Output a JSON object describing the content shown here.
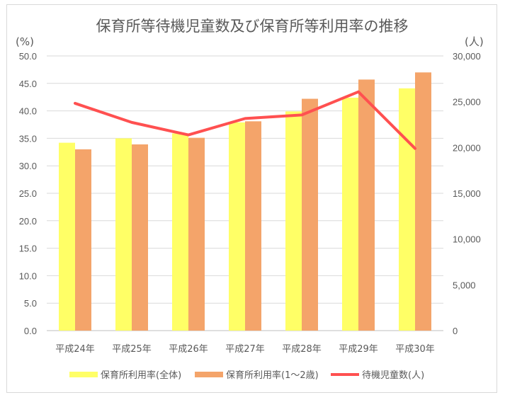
{
  "chart_data": {
    "type": "bar",
    "title": "保育所等待機児童数及び保育所等利用率の推移",
    "categories": [
      "平成24年",
      "平成25年",
      "平成26年",
      "平成27年",
      "平成28年",
      "平成29年",
      "平成30年"
    ],
    "y_left": {
      "unit": "(%)",
      "min": 0,
      "max": 50,
      "step": 5,
      "ticks": [
        "0.0",
        "5.0",
        "10.0",
        "15.0",
        "20.0",
        "25.0",
        "30.0",
        "35.0",
        "40.0",
        "45.0",
        "50.0"
      ]
    },
    "y_right": {
      "unit": "(人)",
      "min": 0,
      "max": 30000,
      "step": 5000,
      "ticks": [
        "0",
        "5,000",
        "10,000",
        "15,000",
        "20,000",
        "25,000",
        "30,000"
      ]
    },
    "series": [
      {
        "name": "保育所利用率(全体)",
        "type": "bar",
        "axis": "left",
        "color": "#ffff66",
        "values": [
          34.2,
          35.0,
          35.9,
          37.9,
          39.9,
          42.4,
          44.1
        ]
      },
      {
        "name": "保育所利用率(1～2歳)",
        "type": "bar",
        "axis": "left",
        "color": "#f4a46a",
        "values": [
          33.0,
          33.9,
          35.1,
          38.1,
          42.2,
          45.7,
          47.0
        ]
      },
      {
        "name": "待機児童数(人)",
        "type": "line",
        "axis": "right",
        "color": "#ff5050",
        "values": [
          24825,
          22741,
          21371,
          23167,
          23553,
          26081,
          19895
        ]
      }
    ],
    "grid": true,
    "legend": "bottom"
  }
}
